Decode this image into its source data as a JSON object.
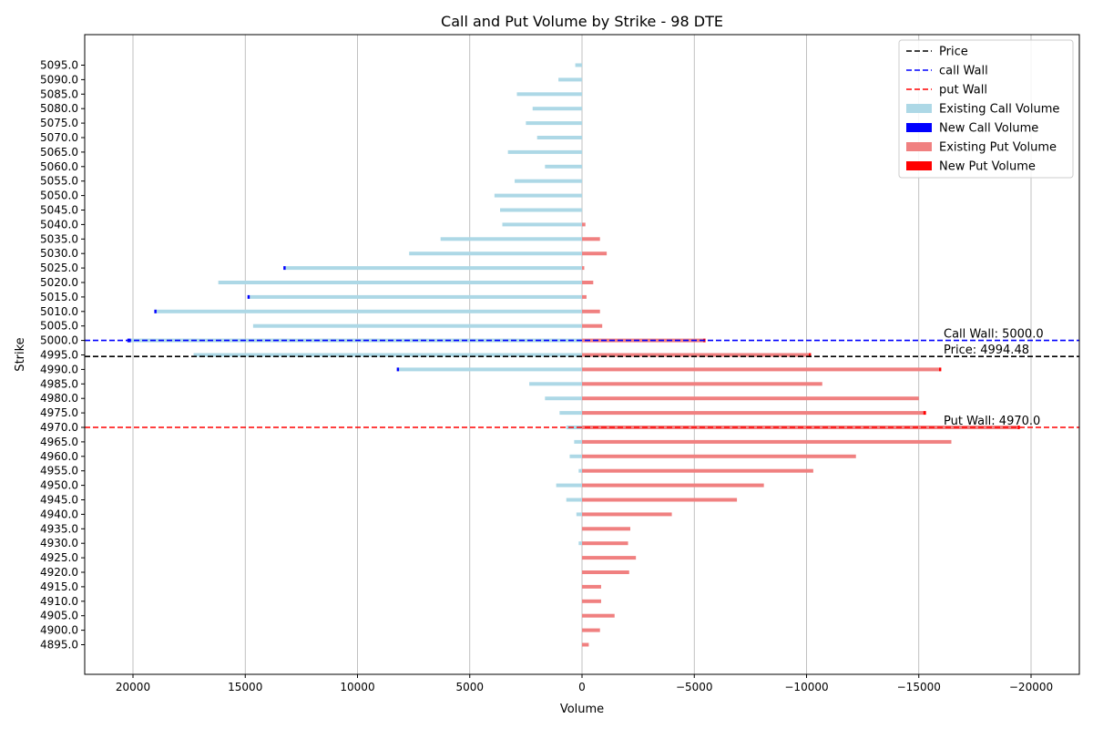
{
  "chart_data": {
    "type": "bar",
    "orientation": "horizontal",
    "title": "Call and Put Volume by Strike - 98 DTE",
    "xlabel": "Volume",
    "ylabel": "Strike",
    "xlim": [
      20000,
      -20000
    ],
    "x_ticks": [
      20000,
      15000,
      10000,
      5000,
      0,
      -5000,
      -10000,
      -15000,
      -20000
    ],
    "x_tick_labels": [
      "20000",
      "15000",
      "10000",
      "5000",
      "0",
      "−5000",
      "−10000",
      "−15000",
      "−20000"
    ],
    "grid": "x",
    "legend_position": "top-right",
    "strikes": [
      "5095.0",
      "5090.0",
      "5085.0",
      "5080.0",
      "5075.0",
      "5070.0",
      "5065.0",
      "5060.0",
      "5055.0",
      "5050.0",
      "5045.0",
      "5040.0",
      "5035.0",
      "5030.0",
      "5025.0",
      "5020.0",
      "5015.0",
      "5010.0",
      "5005.0",
      "5000.0",
      "4995.0",
      "4990.0",
      "4985.0",
      "4980.0",
      "4975.0",
      "4970.0",
      "4965.0",
      "4960.0",
      "4955.0",
      "4950.0",
      "4945.0",
      "4940.0",
      "4935.0",
      "4930.0",
      "4925.0",
      "4920.0",
      "4915.0",
      "4910.0",
      "4905.0",
      "4900.0",
      "4895.0"
    ],
    "series": [
      {
        "name": "Existing Call Volume",
        "color": "#add8e6",
        "values": [
          300,
          1050,
          2900,
          2200,
          2500,
          2000,
          3300,
          1650,
          3000,
          3900,
          3650,
          3550,
          6300,
          7700,
          13200,
          16200,
          14800,
          18950,
          14650,
          20100,
          17300,
          8150,
          2350,
          1650,
          1000,
          700,
          350,
          550,
          150,
          1150,
          700,
          250,
          0,
          150,
          0,
          0,
          0,
          0,
          0,
          0,
          0
        ]
      },
      {
        "name": "New Call Volume",
        "color": "#0000ff",
        "values": [
          0,
          0,
          0,
          0,
          0,
          0,
          0,
          0,
          0,
          0,
          0,
          0,
          0,
          0,
          100,
          0,
          100,
          100,
          0,
          150,
          0,
          100,
          0,
          0,
          0,
          0,
          0,
          0,
          0,
          0,
          0,
          0,
          0,
          0,
          0,
          0,
          0,
          0,
          0,
          0,
          0
        ]
      },
      {
        "name": "Existing Put Volume",
        "color": "#f08080",
        "values": [
          0,
          0,
          0,
          0,
          0,
          0,
          0,
          0,
          0,
          0,
          0,
          -150,
          -800,
          -1100,
          -100,
          -500,
          -200,
          -800,
          -900,
          -5400,
          -10100,
          -15900,
          -10700,
          -15000,
          -15200,
          -19400,
          -16450,
          -12200,
          -10300,
          -8100,
          -6900,
          -4000,
          -2150,
          -2050,
          -2400,
          -2100,
          -850,
          -850,
          -1450,
          -800,
          -300
        ]
      },
      {
        "name": "New Put Volume",
        "color": "#ff0000",
        "values": [
          0,
          0,
          0,
          0,
          0,
          0,
          0,
          0,
          0,
          0,
          0,
          0,
          0,
          0,
          0,
          0,
          0,
          0,
          0,
          -100,
          -100,
          -100,
          0,
          0,
          -120,
          -100,
          0,
          0,
          0,
          0,
          0,
          0,
          0,
          0,
          0,
          0,
          0,
          0,
          0,
          0,
          0
        ]
      }
    ],
    "reference_lines": [
      {
        "name": "Price",
        "strike": 4994.48,
        "color": "#000000",
        "label": "Price: 4994.48"
      },
      {
        "name": "call Wall",
        "strike": 5000.0,
        "color": "#0000ff",
        "label": "Call Wall: 5000.0"
      },
      {
        "name": "put Wall",
        "strike": 4970.0,
        "color": "#ff0000",
        "label": "Put Wall: 4970.0"
      }
    ],
    "legend": [
      "Price",
      "call Wall",
      "put Wall",
      "Existing Call Volume",
      "New Call Volume",
      "Existing Put Volume",
      "New Put Volume"
    ]
  }
}
